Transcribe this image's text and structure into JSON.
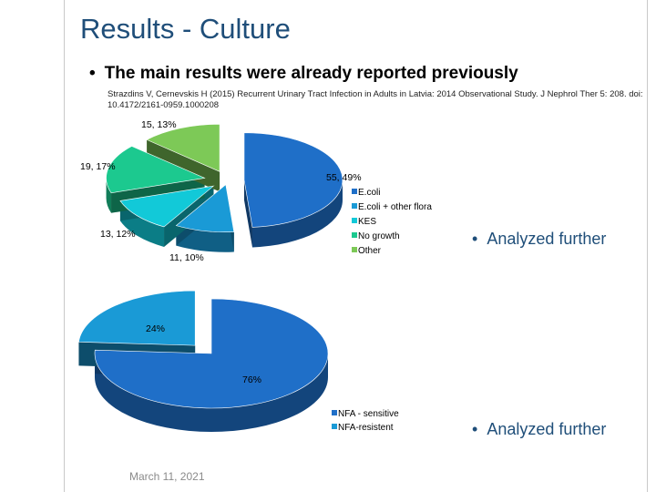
{
  "slide": {
    "title": "Results - Culture",
    "bullet": "The main results were already reported previously",
    "citation": "Strazdins V, Cernevskis H (2015) Recurrent Urinary Tract Infection in Adults in Latvia: 2014 Observational Study. J Nephrol Ther 5: 208. doi: 10.4172/2161-0959.1000208",
    "note1": "Analyzed further",
    "note2": "Analyzed further",
    "date": "March 11, 2021"
  },
  "chart_data": [
    {
      "type": "pie",
      "categories": [
        "E.coli",
        "E.coli + other flora",
        "KES",
        "No growth",
        "Other"
      ],
      "values": [
        55,
        11,
        13,
        19,
        15
      ],
      "percentages": [
        49,
        10,
        12,
        17,
        13
      ],
      "data_labels": [
        "55, 49%",
        "11, 10%",
        "13, 12%",
        "19, 17%",
        "15, 13%"
      ],
      "colors": [
        "#1f6fc8",
        "#1a9ad6",
        "#12c9d8",
        "#1cc98f",
        "#7dc957"
      ],
      "legend_position": "right",
      "exploded": true,
      "three_d": true
    },
    {
      "type": "pie",
      "categories": [
        "NFA - sensitive",
        "NFA-resistent"
      ],
      "values": [
        76,
        24
      ],
      "data_labels": [
        "76%",
        "24%"
      ],
      "colors": [
        "#1f6fc8",
        "#1a9ad6"
      ],
      "legend_position": "bottom-right",
      "exploded": true,
      "three_d": true
    }
  ]
}
